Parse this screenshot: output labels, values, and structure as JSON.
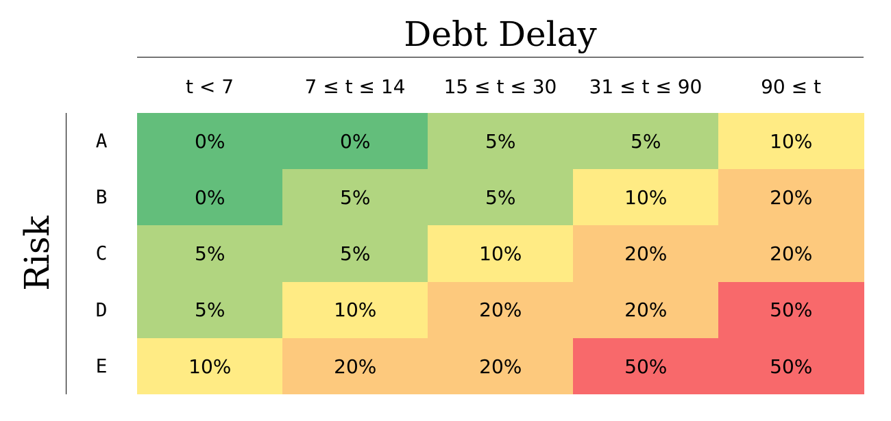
{
  "chart_data": {
    "type": "heatmap",
    "title": "Debt Delay",
    "ylabel": "Risk",
    "columns": [
      "t < 7",
      "7 ≤ t ≤ 14",
      "15 ≤ t ≤ 30",
      "31 ≤ t ≤ 90",
      "90 ≤ t"
    ],
    "rows": [
      "A",
      "B",
      "C",
      "D",
      "E"
    ],
    "values": [
      [
        "0%",
        "0%",
        "5%",
        "5%",
        "10%"
      ],
      [
        "0%",
        "5%",
        "5%",
        "10%",
        "20%"
      ],
      [
        "5%",
        "5%",
        "10%",
        "20%",
        "20%"
      ],
      [
        "5%",
        "10%",
        "20%",
        "20%",
        "50%"
      ],
      [
        "10%",
        "20%",
        "20%",
        "50%",
        "50%"
      ]
    ],
    "color_scale": {
      "0%": "#63be7b",
      "5%": "#b1d580",
      "10%": "#ffeb84",
      "20%": "#fdc97d",
      "50%": "#f8696b"
    }
  }
}
